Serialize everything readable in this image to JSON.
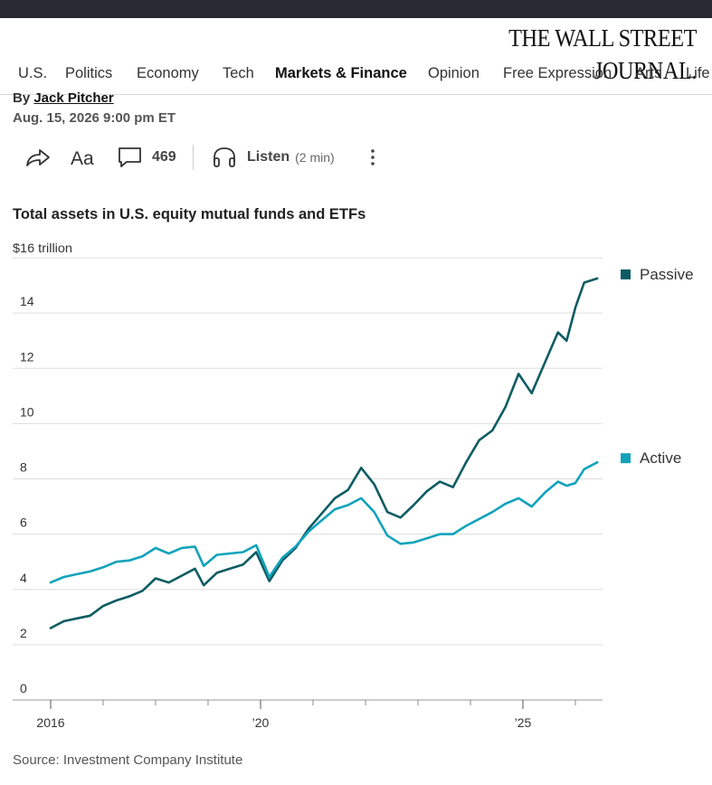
{
  "masthead": "THE WALL STREET JOURNAL.",
  "nav": [
    {
      "label": "U.S.",
      "active": false
    },
    {
      "label": "Politics",
      "active": false
    },
    {
      "label": "Economy",
      "active": false
    },
    {
      "label": "Tech",
      "active": false
    },
    {
      "label": "Markets & Finance",
      "active": true
    },
    {
      "label": "Opinion",
      "active": false
    },
    {
      "label": "Free Expression",
      "active": false
    },
    {
      "label": "Arts",
      "active": false
    },
    {
      "label": "Life",
      "active": false
    }
  ],
  "article": {
    "by_prefix": "By ",
    "author": "Jack Pitcher",
    "date": "Aug. 15, 2026 9:00 pm ET"
  },
  "toolbar": {
    "comment_count": "469",
    "listen_label": "Listen",
    "listen_duration": "(2 min)",
    "icons": [
      "share-icon",
      "text-size-icon",
      "comment-icon",
      "headphones-icon",
      "more-icon"
    ]
  },
  "colors": {
    "passive": "#0d5c63",
    "active": "#11a3bb",
    "grid": "#dddddd"
  },
  "chart_data": {
    "type": "line",
    "title": "Total assets in U.S. equity mutual funds and ETFs",
    "ylabel": "",
    "xlabel": "",
    "y_top_label": "$16 trillion",
    "ylim": [
      0,
      16
    ],
    "yticks": [
      0,
      2,
      4,
      6,
      8,
      10,
      12,
      14
    ],
    "x_range": [
      "2016-01",
      "2026-07"
    ],
    "xticks": [
      {
        "x": "2016-01",
        "label": "2016"
      },
      {
        "x": "2020-01",
        "label": "’20"
      },
      {
        "x": "2025-01",
        "label": "’25"
      }
    ],
    "grid": true,
    "legend_placement": "right, at series end",
    "series": [
      {
        "name": "Passive",
        "points": [
          [
            "2016-01",
            2.6
          ],
          [
            "2016-04",
            2.85
          ],
          [
            "2016-07",
            2.95
          ],
          [
            "2016-10",
            3.05
          ],
          [
            "2017-01",
            3.4
          ],
          [
            "2017-04",
            3.6
          ],
          [
            "2017-07",
            3.75
          ],
          [
            "2017-10",
            3.95
          ],
          [
            "2018-01",
            4.4
          ],
          [
            "2018-04",
            4.25
          ],
          [
            "2018-07",
            4.5
          ],
          [
            "2018-10",
            4.75
          ],
          [
            "2018-12",
            4.15
          ],
          [
            "2019-03",
            4.6
          ],
          [
            "2019-06",
            4.75
          ],
          [
            "2019-09",
            4.9
          ],
          [
            "2019-12",
            5.35
          ],
          [
            "2020-03",
            4.3
          ],
          [
            "2020-06",
            5.05
          ],
          [
            "2020-09",
            5.5
          ],
          [
            "2020-12",
            6.2
          ],
          [
            "2021-03",
            6.75
          ],
          [
            "2021-06",
            7.3
          ],
          [
            "2021-09",
            7.6
          ],
          [
            "2021-12",
            8.4
          ],
          [
            "2022-03",
            7.8
          ],
          [
            "2022-06",
            6.8
          ],
          [
            "2022-09",
            6.6
          ],
          [
            "2022-12",
            7.05
          ],
          [
            "2023-03",
            7.55
          ],
          [
            "2023-06",
            7.9
          ],
          [
            "2023-09",
            7.7
          ],
          [
            "2023-12",
            8.6
          ],
          [
            "2024-03",
            9.4
          ],
          [
            "2024-06",
            9.75
          ],
          [
            "2024-09",
            10.6
          ],
          [
            "2024-12",
            11.8
          ],
          [
            "2025-03",
            11.1
          ],
          [
            "2025-06",
            12.2
          ],
          [
            "2025-09",
            13.3
          ],
          [
            "2025-11",
            13.0
          ],
          [
            "2026-01",
            14.2
          ],
          [
            "2026-03",
            15.1
          ],
          [
            "2026-06",
            15.25
          ]
        ]
      },
      {
        "name": "Active",
        "points": [
          [
            "2016-01",
            4.25
          ],
          [
            "2016-04",
            4.45
          ],
          [
            "2016-07",
            4.55
          ],
          [
            "2016-10",
            4.65
          ],
          [
            "2017-01",
            4.8
          ],
          [
            "2017-04",
            5.0
          ],
          [
            "2017-07",
            5.05
          ],
          [
            "2017-10",
            5.2
          ],
          [
            "2018-01",
            5.5
          ],
          [
            "2018-04",
            5.3
          ],
          [
            "2018-07",
            5.5
          ],
          [
            "2018-10",
            5.55
          ],
          [
            "2018-12",
            4.85
          ],
          [
            "2019-03",
            5.25
          ],
          [
            "2019-06",
            5.3
          ],
          [
            "2019-09",
            5.35
          ],
          [
            "2019-12",
            5.6
          ],
          [
            "2020-03",
            4.45
          ],
          [
            "2020-06",
            5.15
          ],
          [
            "2020-09",
            5.55
          ],
          [
            "2020-12",
            6.1
          ],
          [
            "2021-03",
            6.5
          ],
          [
            "2021-06",
            6.9
          ],
          [
            "2021-09",
            7.05
          ],
          [
            "2021-12",
            7.3
          ],
          [
            "2022-03",
            6.8
          ],
          [
            "2022-06",
            5.95
          ],
          [
            "2022-09",
            5.65
          ],
          [
            "2022-12",
            5.7
          ],
          [
            "2023-03",
            5.85
          ],
          [
            "2023-06",
            6.0
          ],
          [
            "2023-09",
            6.0
          ],
          [
            "2023-12",
            6.3
          ],
          [
            "2024-03",
            6.55
          ],
          [
            "2024-06",
            6.8
          ],
          [
            "2024-09",
            7.1
          ],
          [
            "2024-12",
            7.3
          ],
          [
            "2025-03",
            7.0
          ],
          [
            "2025-06",
            7.5
          ],
          [
            "2025-09",
            7.9
          ],
          [
            "2025-11",
            7.75
          ],
          [
            "2026-01",
            7.85
          ],
          [
            "2026-03",
            8.35
          ],
          [
            "2026-06",
            8.6
          ]
        ]
      }
    ],
    "source": "Source: Investment Company Institute"
  }
}
